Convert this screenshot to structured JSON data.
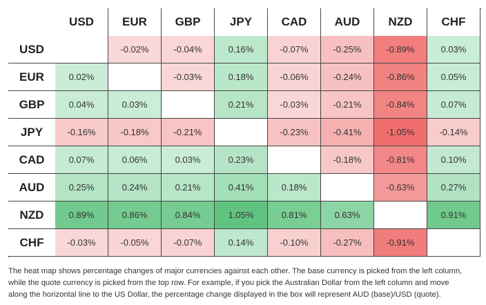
{
  "table": {
    "columns": [
      "USD",
      "EUR",
      "GBP",
      "JPY",
      "CAD",
      "AUD",
      "NZD",
      "CHF"
    ],
    "rows": [
      {
        "label": "USD",
        "cells": [
          null,
          "-0.02%",
          "-0.04%",
          "0.16%",
          "-0.07%",
          "-0.25%",
          "-0.89%",
          "0.03%"
        ]
      },
      {
        "label": "EUR",
        "cells": [
          "0.02%",
          null,
          "-0.03%",
          "0.18%",
          "-0.06%",
          "-0.24%",
          "-0.86%",
          "0.05%"
        ]
      },
      {
        "label": "GBP",
        "cells": [
          "0.04%",
          "0.03%",
          null,
          "0.21%",
          "-0.03%",
          "-0.21%",
          "-0.84%",
          "0.07%"
        ]
      },
      {
        "label": "JPY",
        "cells": [
          "-0.16%",
          "-0.18%",
          "-0.21%",
          null,
          "-0.23%",
          "-0.41%",
          "-1.05%",
          "-0.14%"
        ]
      },
      {
        "label": "CAD",
        "cells": [
          "0.07%",
          "0.06%",
          "0.03%",
          "0.23%",
          null,
          "-0.18%",
          "-0.81%",
          "0.10%"
        ]
      },
      {
        "label": "AUD",
        "cells": [
          "0.25%",
          "0.24%",
          "0.21%",
          "0.41%",
          "0.18%",
          null,
          "-0.63%",
          "0.27%"
        ]
      },
      {
        "label": "NZD",
        "cells": [
          "0.89%",
          "0.86%",
          "0.84%",
          "1.05%",
          "0.81%",
          "0.63%",
          null,
          "0.91%"
        ]
      },
      {
        "label": "CHF",
        "cells": [
          "-0.03%",
          "-0.05%",
          "-0.07%",
          "0.14%",
          "-0.10%",
          "-0.27%",
          "-0.91%",
          null
        ]
      }
    ]
  },
  "footnote": {
    "lines": [
      "The heat map shows percentage changes of major currencies against each other. The base currency is picked from the left column,",
      "while the quote currency is picked from the top row. For example, if you pick the Australian Dollar from the left column and move",
      "along the horizontal line to the US Dollar, the percentage change displayed in the box will represent AUD (base)/USD (quote)."
    ]
  }
}
